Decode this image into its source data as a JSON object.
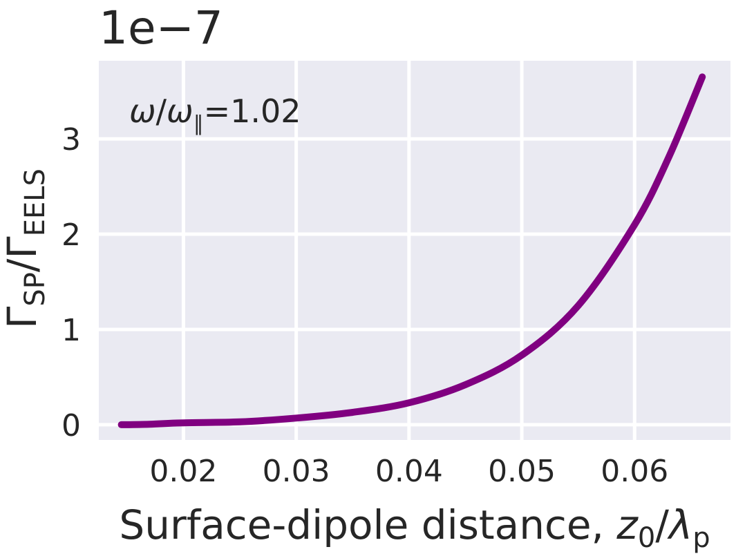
{
  "chart_data": {
    "type": "line",
    "offset_label": "1e−7",
    "annotation": {
      "omega": "ω",
      "slash": "/",
      "omega_par": "ω",
      "par_sub": "∥",
      "equals_value": "=1.02"
    },
    "xlabel": {
      "text": "Surface-dipole distance, ",
      "var": "z",
      "var_sub": "0",
      "slash": "/",
      "lambda": "λ",
      "lambda_sub": "p"
    },
    "ylabel": {
      "gamma1": "Γ",
      "sub1": "SP",
      "slash": "/",
      "gamma2": "Γ",
      "sub2": "EELS"
    },
    "xlim": [
      0.0125,
      0.0685
    ],
    "ylim": [
      -0.16,
      3.82
    ],
    "x_ticks": [
      0.02,
      0.03,
      0.04,
      0.05,
      0.06
    ],
    "x_tick_labels": [
      "0.02",
      "0.03",
      "0.04",
      "0.05",
      "0.06"
    ],
    "y_ticks": [
      0,
      1,
      2,
      3
    ],
    "y_tick_labels": [
      "0",
      "1",
      "2",
      "3"
    ],
    "grid": true,
    "background": "#eaeaf2",
    "series": [
      {
        "color": "#800080",
        "x": [
          0.0145,
          0.017,
          0.02,
          0.025,
          0.03,
          0.035,
          0.04,
          0.045,
          0.05,
          0.055,
          0.06,
          0.063,
          0.066
        ],
        "y": [
          0.0,
          0.005,
          0.02,
          0.03,
          0.07,
          0.13,
          0.23,
          0.42,
          0.73,
          1.25,
          2.1,
          2.8,
          3.65
        ]
      }
    ]
  }
}
